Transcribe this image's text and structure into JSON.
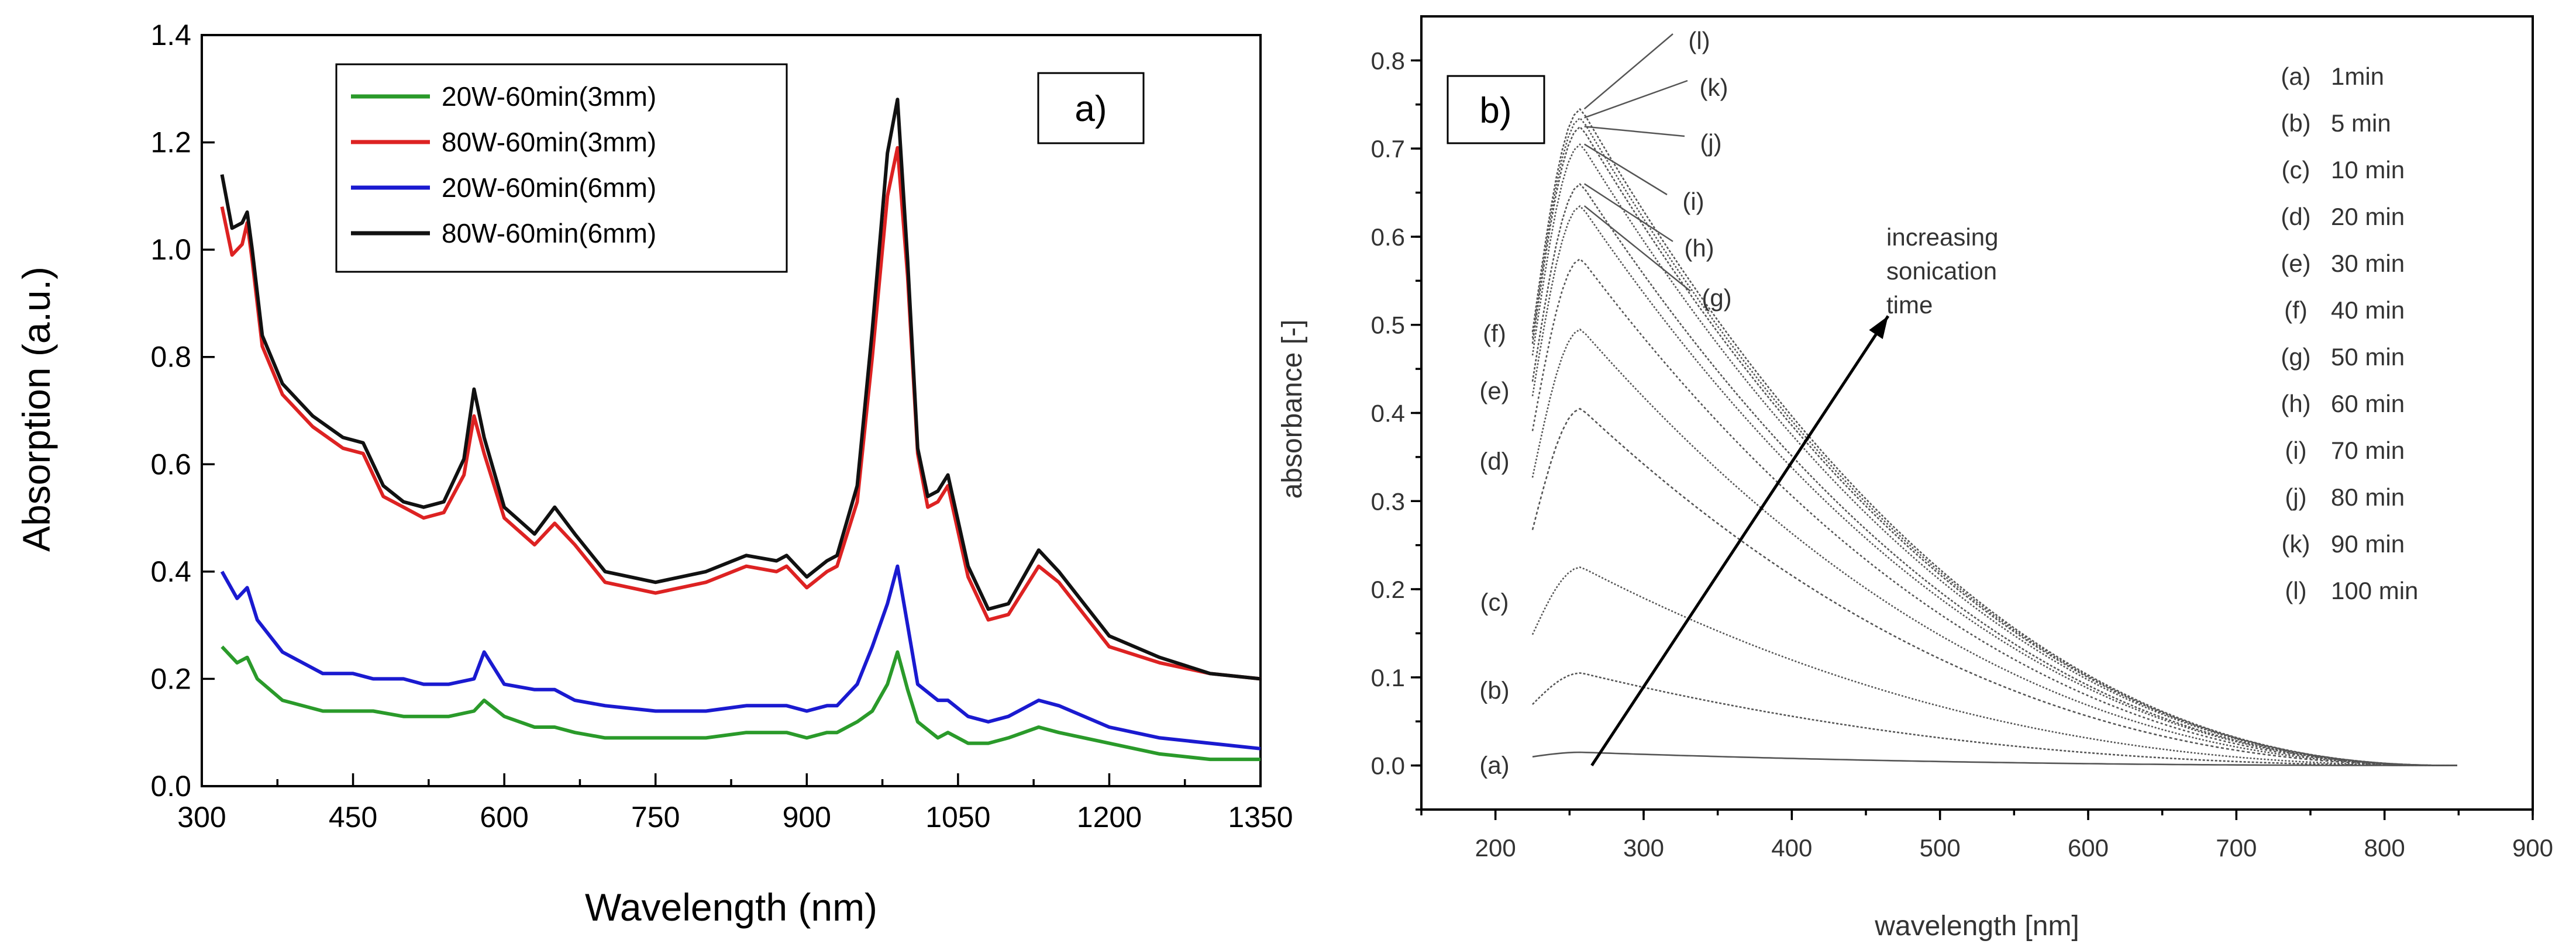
{
  "chart_data": [
    {
      "type": "line",
      "panel_label": "a)",
      "xlabel": "Wavelength (nm)",
      "ylabel": "Absorption (a.u.)",
      "xlim": [
        300,
        1350
      ],
      "ylim": [
        0.0,
        1.4
      ],
      "xticks": [
        "300",
        "450",
        "600",
        "750",
        "900",
        "1050",
        "1200",
        "1350"
      ],
      "yticks": [
        "0.0",
        "0.2",
        "0.4",
        "0.6",
        "0.8",
        "1.0",
        "1.2",
        "1.4"
      ],
      "legend_position": "top-center",
      "series": [
        {
          "name": "20W-60min(3mm)",
          "color": "#2a9a2a",
          "x": [
            320,
            335,
            345,
            355,
            380,
            420,
            450,
            470,
            500,
            520,
            545,
            570,
            580,
            600,
            630,
            650,
            670,
            700,
            750,
            800,
            840,
            870,
            880,
            900,
            920,
            930,
            950,
            965,
            980,
            990,
            1000,
            1010,
            1030,
            1040,
            1060,
            1080,
            1100,
            1130,
            1150,
            1200,
            1250,
            1300,
            1350
          ],
          "y": [
            0.26,
            0.23,
            0.24,
            0.2,
            0.16,
            0.14,
            0.14,
            0.14,
            0.13,
            0.13,
            0.13,
            0.14,
            0.16,
            0.13,
            0.11,
            0.11,
            0.1,
            0.09,
            0.09,
            0.09,
            0.1,
            0.1,
            0.1,
            0.09,
            0.1,
            0.1,
            0.12,
            0.14,
            0.19,
            0.25,
            0.18,
            0.12,
            0.09,
            0.1,
            0.08,
            0.08,
            0.09,
            0.11,
            0.1,
            0.08,
            0.06,
            0.05,
            0.05
          ]
        },
        {
          "name": "80W-60min(3mm)",
          "color": "#dd2222",
          "x": [
            320,
            330,
            340,
            345,
            350,
            360,
            380,
            410,
            440,
            460,
            480,
            500,
            520,
            540,
            560,
            570,
            580,
            600,
            630,
            650,
            670,
            700,
            750,
            800,
            840,
            870,
            880,
            900,
            920,
            930,
            950,
            965,
            980,
            990,
            1000,
            1010,
            1020,
            1030,
            1040,
            1060,
            1080,
            1100,
            1130,
            1150,
            1200,
            1250,
            1300,
            1350
          ],
          "y": [
            1.08,
            0.99,
            1.01,
            1.05,
            0.98,
            0.82,
            0.73,
            0.67,
            0.63,
            0.62,
            0.54,
            0.52,
            0.5,
            0.51,
            0.58,
            0.69,
            0.62,
            0.5,
            0.45,
            0.49,
            0.45,
            0.38,
            0.36,
            0.38,
            0.41,
            0.4,
            0.41,
            0.37,
            0.4,
            0.41,
            0.53,
            0.8,
            1.1,
            1.19,
            0.95,
            0.62,
            0.52,
            0.53,
            0.56,
            0.39,
            0.31,
            0.32,
            0.41,
            0.38,
            0.26,
            0.23,
            0.21,
            0.2
          ]
        },
        {
          "name": "20W-60min(6mm)",
          "color": "#1a1ad0",
          "x": [
            320,
            335,
            345,
            355,
            380,
            420,
            450,
            470,
            500,
            520,
            545,
            570,
            580,
            600,
            630,
            650,
            670,
            700,
            750,
            800,
            840,
            870,
            880,
            900,
            920,
            930,
            950,
            965,
            980,
            990,
            1000,
            1010,
            1030,
            1040,
            1060,
            1080,
            1100,
            1130,
            1150,
            1200,
            1250,
            1300,
            1350
          ],
          "y": [
            0.4,
            0.35,
            0.37,
            0.31,
            0.25,
            0.21,
            0.21,
            0.2,
            0.2,
            0.19,
            0.19,
            0.2,
            0.25,
            0.19,
            0.18,
            0.18,
            0.16,
            0.15,
            0.14,
            0.14,
            0.15,
            0.15,
            0.15,
            0.14,
            0.15,
            0.15,
            0.19,
            0.26,
            0.34,
            0.41,
            0.3,
            0.19,
            0.16,
            0.16,
            0.13,
            0.12,
            0.13,
            0.16,
            0.15,
            0.11,
            0.09,
            0.08,
            0.07
          ]
        },
        {
          "name": "80W-60min(6mm)",
          "color": "#111111",
          "x": [
            320,
            330,
            340,
            345,
            350,
            360,
            380,
            410,
            440,
            460,
            480,
            500,
            520,
            540,
            560,
            570,
            580,
            600,
            630,
            650,
            670,
            700,
            750,
            800,
            840,
            870,
            880,
            900,
            920,
            930,
            950,
            965,
            980,
            990,
            1000,
            1010,
            1020,
            1030,
            1040,
            1060,
            1080,
            1100,
            1130,
            1150,
            1200,
            1250,
            1300,
            1350
          ],
          "y": [
            1.14,
            1.04,
            1.05,
            1.07,
            1.0,
            0.84,
            0.75,
            0.69,
            0.65,
            0.64,
            0.56,
            0.53,
            0.52,
            0.53,
            0.61,
            0.74,
            0.65,
            0.52,
            0.47,
            0.52,
            0.47,
            0.4,
            0.38,
            0.4,
            0.43,
            0.42,
            0.43,
            0.39,
            0.42,
            0.43,
            0.56,
            0.85,
            1.18,
            1.28,
            0.98,
            0.63,
            0.54,
            0.55,
            0.58,
            0.41,
            0.33,
            0.34,
            0.44,
            0.4,
            0.28,
            0.24,
            0.21,
            0.2
          ]
        }
      ]
    },
    {
      "type": "line",
      "panel_label": "b)",
      "xlabel": "wavelength [nm]",
      "ylabel": "absorbance [-]",
      "xlim": [
        150,
        900
      ],
      "ylim": [
        -0.05,
        0.85
      ],
      "xticks": [
        "200",
        "300",
        "400",
        "500",
        "600",
        "700",
        "800",
        "900"
      ],
      "yticks": [
        "0.0",
        "0.1",
        "0.2",
        "0.3",
        "0.4",
        "0.5",
        "0.6",
        "0.7",
        "0.8"
      ],
      "annotation": {
        "text_lines": [
          "increasing",
          "sonication",
          "time"
        ],
        "arrow_from": [
          265,
          0.0
        ],
        "arrow_to": [
          465,
          0.51
        ]
      },
      "series": [
        {
          "name": "(a)",
          "legend": "1min",
          "peak": 0.015
        },
        {
          "name": "(b)",
          "legend": "5 min",
          "peak": 0.105
        },
        {
          "name": "(c)",
          "legend": "10 min",
          "peak": 0.225
        },
        {
          "name": "(d)",
          "legend": "20 min",
          "peak": 0.405
        },
        {
          "name": "(e)",
          "legend": "30 min",
          "peak": 0.495
        },
        {
          "name": "(f)",
          "legend": "40 min",
          "peak": 0.575
        },
        {
          "name": "(g)",
          "legend": "50 min",
          "peak": 0.635
        },
        {
          "name": "(h)",
          "legend": "60 min",
          "peak": 0.66
        },
        {
          "name": "(i)",
          "legend": "70 min",
          "peak": 0.705
        },
        {
          "name": "(j)",
          "legend": "80 min",
          "peak": 0.725
        },
        {
          "name": "(k)",
          "legend": "90 min",
          "peak": 0.735
        },
        {
          "name": "(l)",
          "legend": "100 min",
          "peak": 0.745
        }
      ]
    }
  ]
}
